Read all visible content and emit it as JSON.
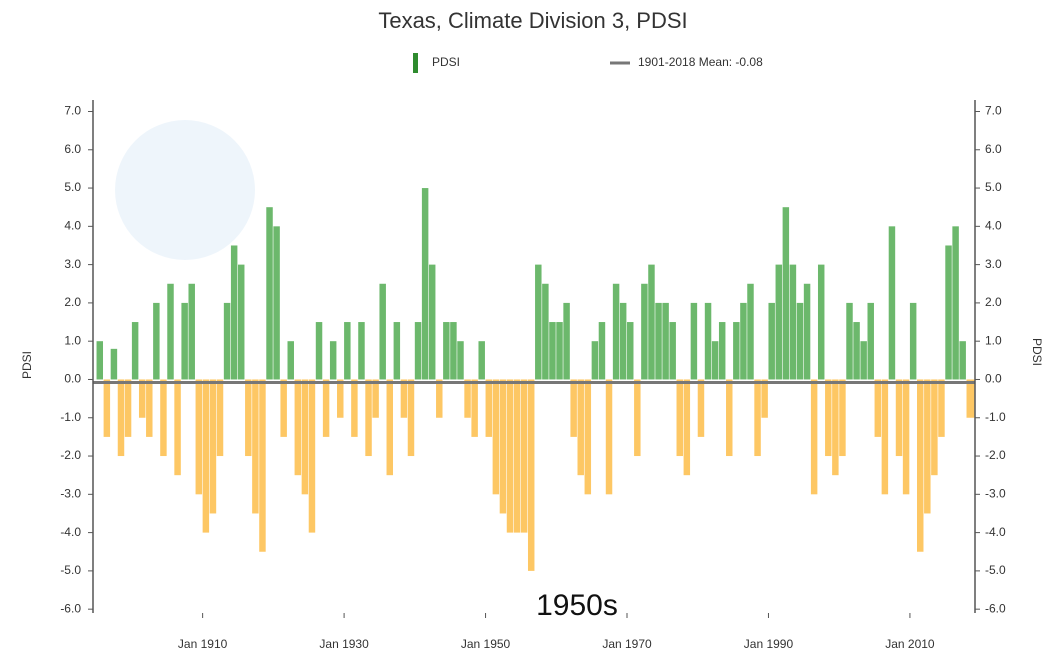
{
  "chart_data": {
    "type": "bar",
    "title": "Texas, Climate Division 3, PDSI",
    "y_label": "PDSI",
    "y2_label": "PDSI",
    "annotation": "1950s",
    "series": [
      {
        "name": "PDSI",
        "color": "#2e8b2e",
        "positive_color": "#6cb86c",
        "negative_color": "#fdc764",
        "values": [
          1.0,
          -1.5,
          0.8,
          -2.0,
          -1.5,
          1.5,
          -1.0,
          -1.5,
          2.0,
          -2.0,
          2.5,
          -2.5,
          2.0,
          2.5,
          -3.0,
          -4.0,
          -3.5,
          -2.0,
          2.0,
          3.5,
          3.0,
          -2.0,
          -3.5,
          -4.5,
          4.5,
          4.0,
          -1.5,
          1.0,
          -2.5,
          -3.0,
          -4.0,
          1.5,
          -1.5,
          1.0,
          -1.0,
          1.5,
          -1.5,
          1.5,
          -2.0,
          -1.0,
          2.5,
          -2.5,
          1.5,
          -1.0,
          -2.0,
          1.5,
          5.0,
          3.0,
          -1.0,
          1.5,
          1.5,
          1.0,
          -1.0,
          -1.5,
          1.0,
          -1.5,
          -3.0,
          -3.5,
          -4.0,
          -4.0,
          -4.0,
          -5.0,
          3.0,
          2.5,
          1.5,
          1.5,
          2.0,
          -1.5,
          -2.5,
          -3.0,
          1.0,
          1.5,
          -3.0,
          2.5,
          2.0,
          1.5,
          -2.0,
          2.5,
          3.0,
          2.0,
          2.0,
          1.5,
          -2.0,
          -2.5,
          2.0,
          -1.5,
          2.0,
          1.0,
          1.5,
          -2.0,
          1.5,
          2.0,
          2.5,
          -2.0,
          -1.0,
          2.0,
          3.0,
          4.5,
          3.0,
          2.0,
          2.5,
          -3.0,
          3.0,
          -2.0,
          -2.5,
          -2.0,
          2.0,
          1.5,
          1.0,
          2.0,
          -1.5,
          -3.0,
          4.0,
          -2.0,
          -3.0,
          2.0,
          -4.5,
          -3.5,
          -2.5,
          -1.5,
          3.5,
          4.0,
          1.0,
          -1.0
        ]
      },
      {
        "name": "1901-2018 Mean: -0.08",
        "color": "#777777",
        "value": -0.08
      }
    ],
    "x": [
      1895,
      1896,
      1897,
      1898,
      1899,
      1900,
      1901,
      1902,
      1903,
      1904,
      1905,
      1906,
      1907,
      1908,
      1909,
      1910,
      1911,
      1912,
      1913,
      1914,
      1915,
      1916,
      1917,
      1918,
      1919,
      1920,
      1921,
      1922,
      1923,
      1924,
      1925,
      1926,
      1927,
      1928,
      1929,
      1930,
      1931,
      1932,
      1933,
      1934,
      1935,
      1936,
      1937,
      1938,
      1939,
      1940,
      1941,
      1942,
      1943,
      1944,
      1945,
      1946,
      1947,
      1948,
      1949,
      1950,
      1951,
      1952,
      1953,
      1954,
      1955,
      1956,
      1957,
      1958,
      1959,
      1960,
      1961,
      1962,
      1963,
      1964,
      1965,
      1966,
      1967,
      1968,
      1969,
      1970,
      1971,
      1972,
      1973,
      1974,
      1975,
      1976,
      1977,
      1978,
      1979,
      1980,
      1981,
      1982,
      1983,
      1984,
      1985,
      1986,
      1987,
      1988,
      1989,
      1990,
      1991,
      1992,
      1993,
      1994,
      1995,
      1996,
      1997,
      1998,
      1999,
      2000,
      2001,
      2002,
      2003,
      2004,
      2005,
      2006,
      2007,
      2008,
      2009,
      2010,
      2011,
      2012,
      2013,
      2014,
      2015,
      2016,
      2017,
      2018
    ],
    "xlim": [
      1894.5,
      2019.2
    ],
    "xticks": [
      {
        "value": 1910,
        "label": "Jan 1910"
      },
      {
        "value": 1930,
        "label": "Jan 1930"
      },
      {
        "value": 1950,
        "label": "Jan 1950"
      },
      {
        "value": 1970,
        "label": "Jan 1970"
      },
      {
        "value": 1990,
        "label": "Jan 1990"
      },
      {
        "value": 2010,
        "label": "Jan 2010"
      }
    ],
    "ylim": [
      -6.1,
      7.3
    ],
    "yticks": [
      {
        "value": -6,
        "label": "-6.0"
      },
      {
        "value": -5,
        "label": "-5.0"
      },
      {
        "value": -4,
        "label": "-4.0"
      },
      {
        "value": -3,
        "label": "-3.0"
      },
      {
        "value": -2,
        "label": "-2.0"
      },
      {
        "value": -1,
        "label": "-1.0"
      },
      {
        "value": 0,
        "label": "0.0"
      },
      {
        "value": 1,
        "label": "1.0"
      },
      {
        "value": 2,
        "label": "2.0"
      },
      {
        "value": 3,
        "label": "3.0"
      },
      {
        "value": 4,
        "label": "4.0"
      },
      {
        "value": 5,
        "label": "5.0"
      },
      {
        "value": 6,
        "label": "6.0"
      },
      {
        "value": 7,
        "label": "7.0"
      }
    ],
    "y2lim": [
      -6.1,
      7.3
    ],
    "y2ticks": [
      {
        "value": -6,
        "label": "-6.0"
      },
      {
        "value": -5,
        "label": "-5.0"
      },
      {
        "value": -4,
        "label": "-4.0"
      },
      {
        "value": -3,
        "label": "-3.0"
      },
      {
        "value": -2,
        "label": "-2.0"
      },
      {
        "value": -1,
        "label": "-1.0"
      },
      {
        "value": 0,
        "label": "0.0"
      },
      {
        "value": 1,
        "label": "1.0"
      },
      {
        "value": 2,
        "label": "2.0"
      },
      {
        "value": 3,
        "label": "3.0"
      },
      {
        "value": 4,
        "label": "4.0"
      },
      {
        "value": 5,
        "label": "5.0"
      },
      {
        "value": 6,
        "label": "6.0"
      },
      {
        "value": 7,
        "label": "7.0"
      }
    ],
    "grid": false
  }
}
